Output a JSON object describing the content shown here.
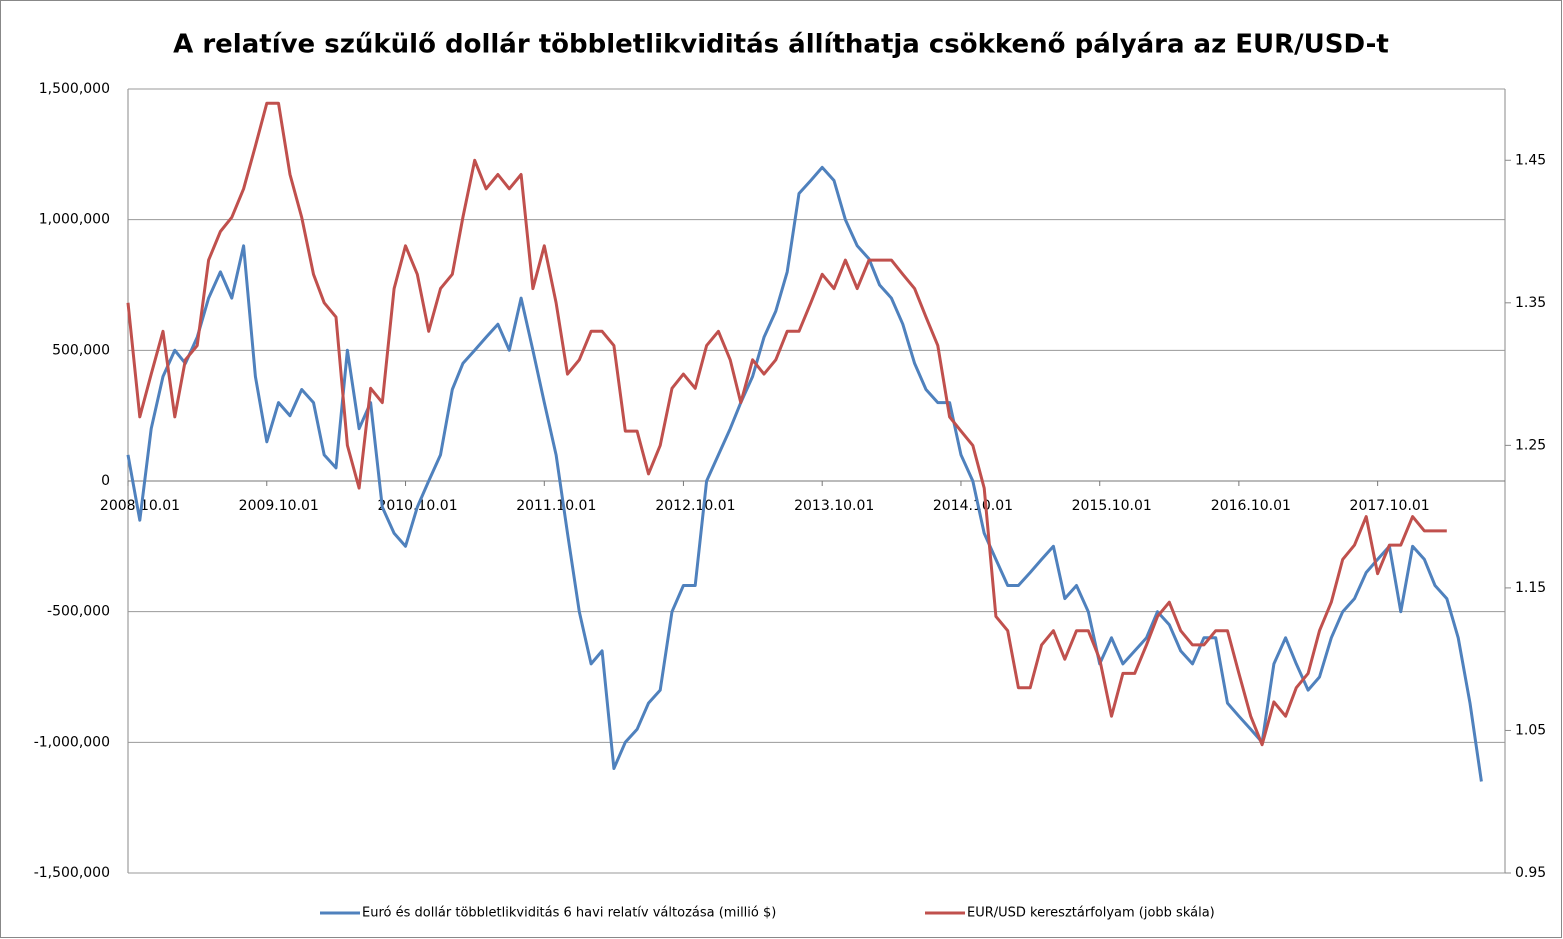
{
  "chart_data": {
    "type": "line",
    "title": "A relatíve szűkülő dollár többletlikviditás állíthatja csökkenő pályára az EUR/USD-t",
    "x": [
      "2008.10.01",
      "2008.11.01",
      "2008.12.01",
      "2009.01.01",
      "2009.02.01",
      "2009.03.01",
      "2009.04.01",
      "2009.05.01",
      "2009.06.01",
      "2009.07.01",
      "2009.08.01",
      "2009.09.01",
      "2009.10.01",
      "2009.11.01",
      "2009.12.01",
      "2010.01.01",
      "2010.02.01",
      "2010.03.01",
      "2010.04.01",
      "2010.05.01",
      "2010.06.01",
      "2010.07.01",
      "2010.08.01",
      "2010.09.01",
      "2010.10.01",
      "2010.11.01",
      "2010.12.01",
      "2011.01.01",
      "2011.02.01",
      "2011.03.01",
      "2011.04.01",
      "2011.05.01",
      "2011.06.01",
      "2011.07.01",
      "2011.08.01",
      "2011.09.01",
      "2011.10.01",
      "2011.11.01",
      "2011.12.01",
      "2012.01.01",
      "2012.02.01",
      "2012.03.01",
      "2012.04.01",
      "2012.05.01",
      "2012.06.01",
      "2012.07.01",
      "2012.08.01",
      "2012.09.01",
      "2012.10.01",
      "2012.11.01",
      "2012.12.01",
      "2013.01.01",
      "2013.02.01",
      "2013.03.01",
      "2013.04.01",
      "2013.05.01",
      "2013.06.01",
      "2013.07.01",
      "2013.08.01",
      "2013.09.01",
      "2013.10.01",
      "2013.11.01",
      "2013.12.01",
      "2014.01.01",
      "2014.02.01",
      "2014.03.01",
      "2014.04.01",
      "2014.05.01",
      "2014.06.01",
      "2014.07.01",
      "2014.08.01",
      "2014.09.01",
      "2014.10.01",
      "2014.11.01",
      "2014.12.01",
      "2015.01.01",
      "2015.02.01",
      "2015.03.01",
      "2015.04.01",
      "2015.05.01",
      "2015.06.01",
      "2015.07.01",
      "2015.08.01",
      "2015.09.01",
      "2015.10.01",
      "2015.11.01",
      "2015.12.01",
      "2016.01.01",
      "2016.02.01",
      "2016.03.01",
      "2016.04.01",
      "2016.05.01",
      "2016.06.01",
      "2016.07.01",
      "2016.08.01",
      "2016.09.01",
      "2016.10.01",
      "2016.11.01",
      "2016.12.01",
      "2017.01.01",
      "2017.02.01",
      "2017.03.01",
      "2017.04.01",
      "2017.05.01",
      "2017.06.01",
      "2017.07.01",
      "2017.08.01",
      "2017.09.01",
      "2017.10.01",
      "2017.11.01",
      "2017.12.01",
      "2018.01.01",
      "2018.02.01",
      "2018.03.01",
      "2018.04.01",
      "2018.05.01",
      "2018.06.01",
      "2018.07.01"
    ],
    "xlim": [
      "2008.10.01",
      "2018.09.01"
    ],
    "xticks": [
      "2008.10.01",
      "2009.10.01",
      "2010.10.01",
      "2011.10.01",
      "2012.10.01",
      "2013.10.01",
      "2014.10.01",
      "2015.10.01",
      "2016.10.01",
      "2017.10.01"
    ],
    "ylim": [
      -1500000,
      1500000
    ],
    "yticks": [
      {
        "value": -1500000,
        "label": "-1,500,000"
      },
      {
        "value": -1000000,
        "label": "-1,000,000"
      },
      {
        "value": -500000,
        "label": "-500,000"
      },
      0,
      {
        "value": 500000,
        "label": "500,000"
      },
      {
        "value": 1000000,
        "label": "1,000,000"
      },
      {
        "value": 1500000,
        "label": "1,500,000"
      }
    ],
    "y2lim": [
      0.95,
      1.5
    ],
    "y2ticks": [
      0.95,
      1.05,
      1.15,
      1.25,
      1.35,
      1.45
    ],
    "grid": true,
    "legend": "bottom",
    "series": [
      {
        "name": "Euró és dollár többletlikviditás 6 havi relatív változása (millió $)",
        "color": "#4f81bd",
        "values": [
          100000,
          -150000,
          200000,
          400000,
          500000,
          450000,
          550000,
          700000,
          800000,
          700000,
          900000,
          400000,
          150000,
          300000,
          250000,
          350000,
          300000,
          100000,
          50000,
          500000,
          200000,
          300000,
          -100000,
          -200000,
          -250000,
          -100000,
          0,
          100000,
          350000,
          450000,
          500000,
          550000,
          600000,
          500000,
          700000,
          500000,
          300000,
          100000,
          -200000,
          -500000,
          -700000,
          -650000,
          -1100000,
          -1000000,
          -950000,
          -850000,
          -800000,
          -500000,
          -400000,
          -400000,
          0,
          100000,
          200000,
          300000,
          400000,
          550000,
          650000,
          800000,
          1100000,
          1150000,
          1200000,
          1150000,
          1000000,
          900000,
          850000,
          750000,
          700000,
          600000,
          450000,
          350000,
          300000,
          300000,
          100000,
          0,
          -200000,
          -300000,
          -400000,
          -400000,
          -350000,
          -300000,
          -250000,
          -450000,
          -400000,
          -500000,
          -700000,
          -600000,
          -700000,
          -650000,
          -600000,
          -500000,
          -550000,
          -650000,
          -700000,
          -600000,
          -600000,
          -850000,
          -900000,
          -950000,
          -1000000,
          -700000,
          -600000,
          -700000,
          -800000,
          -750000,
          -600000,
          -500000,
          -450000,
          -350000,
          -300000,
          -250000,
          -500000,
          -250000,
          -300000,
          -400000,
          -450000,
          -600000,
          -850000,
          -1150000
        ]
      },
      {
        "name": "EUR/USD keresztárfolyam (jobb skála)",
        "color": "#c0504d",
        "axis": "y2",
        "values": [
          1.35,
          1.27,
          1.3,
          1.33,
          1.27,
          1.31,
          1.32,
          1.38,
          1.4,
          1.41,
          1.43,
          1.46,
          1.49,
          1.49,
          1.44,
          1.41,
          1.37,
          1.35,
          1.34,
          1.25,
          1.22,
          1.29,
          1.28,
          1.36,
          1.39,
          1.37,
          1.33,
          1.36,
          1.37,
          1.41,
          1.45,
          1.43,
          1.44,
          1.43,
          1.44,
          1.36,
          1.39,
          1.35,
          1.3,
          1.31,
          1.33,
          1.33,
          1.32,
          1.26,
          1.26,
          1.23,
          1.25,
          1.29,
          1.3,
          1.29,
          1.32,
          1.33,
          1.31,
          1.28,
          1.31,
          1.3,
          1.31,
          1.33,
          1.33,
          1.35,
          1.37,
          1.36,
          1.38,
          1.36,
          1.38,
          1.38,
          1.38,
          1.37,
          1.36,
          1.34,
          1.32,
          1.27,
          1.26,
          1.25,
          1.22,
          1.13,
          1.12,
          1.08,
          1.08,
          1.11,
          1.12,
          1.1,
          1.12,
          1.12,
          1.1,
          1.06,
          1.09,
          1.09,
          1.11,
          1.13,
          1.14,
          1.12,
          1.11,
          1.11,
          1.12,
          1.12,
          1.09,
          1.06,
          1.04,
          1.07,
          1.06,
          1.08,
          1.09,
          1.12,
          1.14,
          1.17,
          1.18,
          1.2,
          1.16,
          1.18,
          1.18,
          1.2,
          1.19,
          1.19,
          1.19,
          null,
          null,
          null
        ]
      }
    ]
  }
}
